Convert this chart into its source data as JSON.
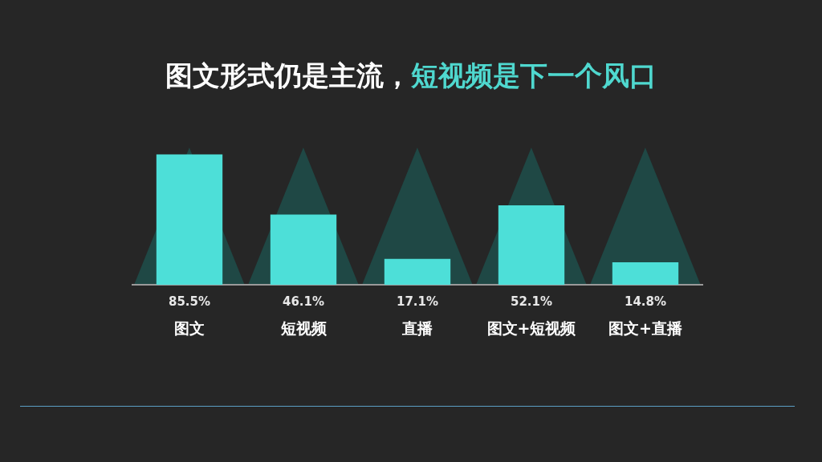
{
  "chart_data": {
    "type": "bar",
    "title": "图文形式仍是主流，",
    "subtitle": "短视频是下一个风口",
    "categories": [
      "图文",
      "短视频",
      "直播",
      "图文+短视频",
      "图文+直播"
    ],
    "values": [
      85.5,
      46.1,
      17.1,
      52.1,
      14.8
    ],
    "data_labels": true,
    "value_labels": [
      "85.5%",
      "46.1%",
      "17.1%",
      "52.1%",
      "14.8%"
    ],
    "color": "#4ddfd8",
    "tick_labels": "x"
  }
}
